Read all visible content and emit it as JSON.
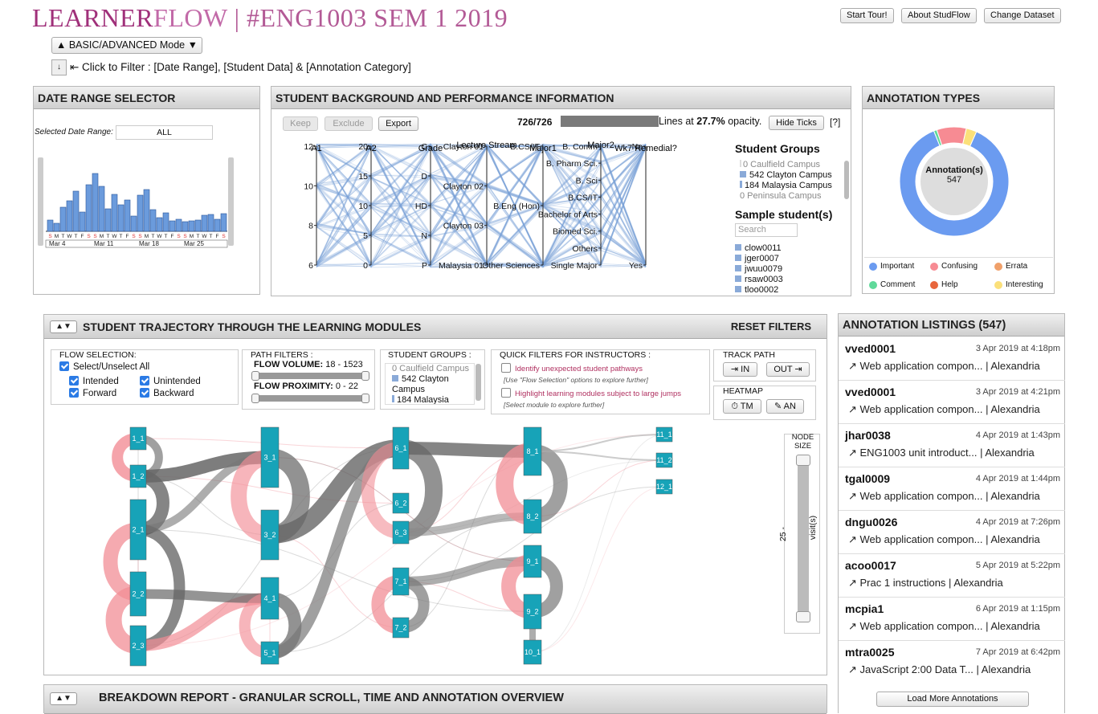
{
  "header": {
    "brand_a": "LEARNER",
    "brand_b": "FLOW",
    "rest": " | #ENG1003 SEM 1 2019",
    "buttons": {
      "tour": "Start Tour!",
      "about": "About StudFlow",
      "dataset": "Change Dataset"
    },
    "mode_button": "▲ BASIC/ADVANCED Mode ▼",
    "filter_icon": "↓",
    "filter_hint": "⇤ Click to Filter : [Date Range], [Student Data] & [Annotation Category]"
  },
  "date_panel": {
    "title": "DATE RANGE SELECTOR",
    "selected_label": "Selected Date Range:",
    "selected_value": "ALL",
    "day_letters": "SMTWTFSSMTWTFSSMTWTFSSMTWTFS",
    "week_labels": [
      "Mar 4",
      "Mar 11",
      "Mar 18",
      "Mar 25"
    ],
    "bars": [
      14,
      10,
      30,
      38,
      50,
      24,
      58,
      72,
      56,
      28,
      46,
      33,
      39,
      19,
      45,
      52,
      27,
      17,
      23,
      13,
      15,
      12,
      13,
      14,
      20,
      21,
      15,
      22
    ]
  },
  "student_panel": {
    "title": "STUDENT BACKGROUND AND PERFORMANCE INFORMATION",
    "keep": "Keep",
    "exclude": "Exclude",
    "export": "Export",
    "count": "726/726",
    "lines_at": "Lines at",
    "opacity": "27.7%",
    "opacity_suffix": "opacity.",
    "hide_ticks": "Hide Ticks",
    "help": "[?]",
    "axes": [
      {
        "name": "A1",
        "ticks": [
          "12",
          "10",
          "8",
          "6"
        ]
      },
      {
        "name": "A2",
        "ticks": [
          "20",
          "15",
          "10",
          "5",
          "0"
        ]
      },
      {
        "name": "Grade",
        "ticks": [
          "C",
          "D",
          "HD",
          "N",
          "P"
        ]
      },
      {
        "name": "Lecture Stream",
        "ticks": [
          "Clayton 01",
          "Clayton 02",
          "Clayton 03",
          "Malaysia 01"
        ]
      },
      {
        "name": "Major1",
        "ticks": [
          "B.CS/IT",
          "B.Eng (Hon)",
          "Other Sciences"
        ]
      },
      {
        "name": "Major2",
        "ticks": [
          "B. Comm",
          "B. Pharm Sci.",
          "B. Sci",
          "B.CS/IT",
          "Bachelor of Arts",
          "Biomed Sci.",
          "Others",
          "Single Major"
        ]
      },
      {
        "name": "Wk7 Remedial?",
        "ticks": [
          "No",
          "Yes"
        ]
      }
    ],
    "groups_title": "Student Groups",
    "groups": [
      "0 Caulfield Campus",
      "542 Clayton Campus",
      "184 Malaysia Campus",
      "0 Peninsula Campus"
    ],
    "sample_title": "Sample student(s)",
    "search_placeholder": "Search Student",
    "samples": [
      "clow0011",
      "jger0007",
      "jwuu0079",
      "rsaw0003",
      "tloo0002"
    ]
  },
  "annotation_types": {
    "title": "ANNOTATION TYPES",
    "center_label": "Annotation(s)",
    "center_count": "547",
    "slices": [
      {
        "name": "Important",
        "value": 477,
        "color": "#6b9bf0"
      },
      {
        "name": "Comment",
        "value": 5,
        "color": "#5fd99a"
      },
      {
        "name": "Confusing",
        "value": 48,
        "color": "#f78b93"
      },
      {
        "name": "Interesting",
        "value": 17,
        "color": "#fbe07a"
      },
      {
        "name": "Errata",
        "value": 0,
        "color": "#f0a06a"
      },
      {
        "name": "Help",
        "value": 0,
        "color": "#e8663c"
      }
    ],
    "legend": [
      "Important",
      "Confusing",
      "Errata",
      "Comment",
      "Help",
      "Interesting"
    ]
  },
  "trajectory": {
    "toggle": "▲▼",
    "title": "STUDENT TRAJECTORY THROUGH THE LEARNING MODULES",
    "reset": "RESET FILTERS",
    "flow_selection": {
      "title": "FLOW SELECTION:",
      "all": "Select/Unselect All",
      "intended": "Intended",
      "unintended": "Unintended",
      "forward": "Forward",
      "backward": "Backward"
    },
    "path_filters": {
      "title": "PATH FILTERS :",
      "volume_label": "FLOW VOLUME:",
      "volume_value": "18 - 1523",
      "proximity_label": "FLOW PROXIMITY:",
      "proximity_value": "0 - 22"
    },
    "student_groups": {
      "title": "STUDENT GROUPS :",
      "items": [
        "0 Caulfield Campus",
        "542 Clayton Campus",
        "184 Malaysia"
      ]
    },
    "quick_filters": {
      "title": "QUICK FILTERS FOR INSTRUCTORS :",
      "f1": "Identify unexpected student pathways",
      "f1_note": "[Use \"Flow Selection\" options to explore further]",
      "f2": "Highlight learning modules subject to large jumps",
      "f2_note": "[Select module to explore further]"
    },
    "track": {
      "title": "TRACK PATH",
      "in": "⇥ IN",
      "out": "OUT ⇥"
    },
    "heatmap": {
      "title": "HEATMAP",
      "tm": "⏱ TM",
      "an": "✎ AN"
    },
    "node_size": {
      "title_a": "NODE",
      "title_b": "SIZE",
      "value": "25 -",
      "unit": "visit(s)"
    },
    "nodes": [
      "1_1",
      "1_2",
      "2_1",
      "2_2",
      "2_3",
      "3_1",
      "3_2",
      "4_1",
      "5_1",
      "6_1",
      "6_2",
      "6_3",
      "7_1",
      "7_2",
      "8_1",
      "8_2",
      "9_1",
      "9_2",
      "10_1",
      "11_1",
      "11_2",
      "12_1"
    ]
  },
  "breakdown": {
    "toggle": "▲▼",
    "title": "BREAKDOWN REPORT - GRANULAR SCROLL, TIME AND ANNOTATION OVERVIEW"
  },
  "listings": {
    "title": "ANNOTATION LISTINGS (547)",
    "load_more": "Load More Annotations",
    "items": [
      {
        "user": "vved0001",
        "date": "3 Apr 2019 at 4:18pm",
        "text": "↗ Web application compon... | Alexandria"
      },
      {
        "user": "vved0001",
        "date": "3 Apr 2019 at 4:21pm",
        "text": "↗ Web application compon... | Alexandria"
      },
      {
        "user": "jhar0038",
        "date": "4 Apr 2019 at 1:43pm",
        "text": "↗ ENG1003 unit introduct... | Alexandria"
      },
      {
        "user": "tgal0009",
        "date": "4 Apr 2019 at 1:44pm",
        "text": "↗ Web application compon... | Alexandria"
      },
      {
        "user": "dngu0026",
        "date": "4 Apr 2019 at 7:26pm",
        "text": "↗ Web application compon... | Alexandria"
      },
      {
        "user": "acoo0017",
        "date": "5 Apr 2019 at 5:22pm",
        "text": "↗ Prac 1 instructions | Alexandria"
      },
      {
        "user": "mcpia1",
        "date": "6 Apr 2019 at 1:15pm",
        "text": "↗ Web application compon... | Alexandria"
      },
      {
        "user": "mtra0025",
        "date": "7 Apr 2019 at 6:42pm",
        "text": "↗ JavaScript 2:00 Data T... | Alexandria"
      }
    ]
  }
}
